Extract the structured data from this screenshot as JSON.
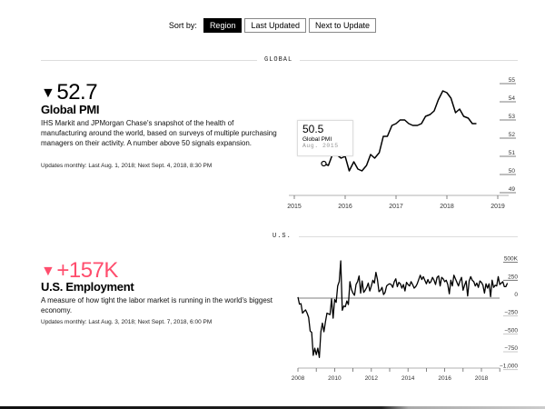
{
  "sort": {
    "label": "Sort by:",
    "options": [
      {
        "label": "Region",
        "active": true
      },
      {
        "label": "Last Updated",
        "active": false
      },
      {
        "label": "Next to Update",
        "active": false
      }
    ]
  },
  "sections": [
    {
      "label": "GLOBAL",
      "indicator": {
        "direction": "▼",
        "value": "52.7",
        "value_color": "#000000",
        "title": "Global PMI",
        "description": "IHS Markit and JPMorgan Chase's snapshot of the health of manufacturing around the world, based on surveys of multiple purchasing managers on their activity. A number above 50 signals expansion.",
        "updates": "Updates monthly: Last Aug. 1, 2018; Next Sept. 4, 2018, 8:30 PM",
        "tooltip": {
          "value": "50.5",
          "name": "Global PMI",
          "date": "Aug. 2015"
        }
      }
    },
    {
      "label": "U.S.",
      "indicator": {
        "direction": "▼",
        "value": "+157K",
        "value_color": "#ff4d6d",
        "title": "U.S. Employment",
        "description": "A measure of how tight the labor market is running in the world's biggest economy.",
        "updates": "Updates monthly: Last Aug. 3, 2018; Next Sept. 7, 2018, 6:00 PM"
      }
    }
  ],
  "chart_data": [
    {
      "type": "line",
      "title": "Global PMI",
      "xlabel": "",
      "ylabel": "",
      "x_ticks": [
        "2015",
        "2016",
        "2017",
        "2018",
        "2019"
      ],
      "y_ticks": [
        "55",
        "54",
        "53",
        "52",
        "51",
        "50",
        "49"
      ],
      "ylim": [
        49,
        55
      ],
      "xlim": [
        2015,
        2019
      ],
      "grid": false,
      "highlight": {
        "x": "Aug. 2015",
        "y": 50.5
      },
      "x": [
        2015.58,
        2015.67,
        2015.75,
        2015.83,
        2015.92,
        2016.0,
        2016.08,
        2016.17,
        2016.25,
        2016.33,
        2016.42,
        2016.5,
        2016.58,
        2016.67,
        2016.75,
        2016.83,
        2016.92,
        2017.0,
        2017.08,
        2017.17,
        2017.25,
        2017.33,
        2017.42,
        2017.5,
        2017.58,
        2017.67,
        2017.75,
        2017.83,
        2017.92,
        2018.0,
        2018.08,
        2018.17,
        2018.25,
        2018.33,
        2018.42,
        2018.5,
        2018.58
      ],
      "values": [
        50.5,
        50.4,
        51.0,
        51.0,
        50.8,
        50.9,
        50.1,
        50.6,
        50.2,
        50.1,
        50.4,
        51.0,
        50.8,
        51.1,
        52.0,
        52.0,
        52.6,
        52.7,
        52.9,
        52.9,
        52.7,
        52.6,
        52.6,
        52.7,
        53.1,
        53.2,
        53.4,
        54.0,
        54.5,
        54.4,
        54.1,
        53.3,
        53.5,
        53.1,
        53.0,
        52.7,
        52.7
      ]
    },
    {
      "type": "line",
      "title": "U.S. Employment (monthly change, thousands)",
      "xlabel": "",
      "ylabel": "",
      "x_ticks": [
        "2008",
        "2010",
        "2012",
        "2014",
        "2016",
        "2018"
      ],
      "y_ticks": [
        "500K",
        "250",
        "0",
        "−250",
        "−500",
        "−750",
        "−1,000"
      ],
      "ylim": [
        -1000,
        500
      ],
      "xlim": [
        2008,
        2019
      ],
      "grid": false,
      "x_start": 2008.0,
      "x_step_months": 1,
      "values": [
        14,
        -85,
        -78,
        -210,
        -185,
        -165,
        -210,
        -270,
        -460,
        -480,
        -800,
        -700,
        -790,
        -700,
        -830,
        -470,
        -350,
        -470,
        -330,
        -210,
        -220,
        -230,
        -10,
        -280,
        -20,
        -60,
        170,
        230,
        520,
        -170,
        -110,
        -120,
        -40,
        -90,
        230,
        120,
        70,
        40,
        190,
        230,
        310,
        70,
        240,
        80,
        110,
        150,
        210,
        100,
        170,
        250,
        210,
        360,
        260,
        90,
        110,
        150,
        50,
        80,
        170,
        190,
        200,
        190,
        150,
        230,
        270,
        160,
        220,
        200,
        140,
        190,
        100,
        220,
        190,
        170,
        230,
        190,
        140,
        160,
        200,
        260,
        320,
        260,
        300,
        250,
        200,
        260,
        210,
        230,
        290,
        250,
        190,
        290,
        310,
        170,
        290,
        270,
        230,
        250,
        190,
        60,
        250,
        170,
        320,
        270,
        220,
        170,
        240,
        290,
        110,
        180,
        240,
        30,
        240,
        300,
        250,
        230,
        170,
        210,
        150,
        240,
        220,
        180,
        70,
        200,
        140,
        200,
        20,
        250,
        150,
        180,
        170,
        300,
        190,
        210,
        230,
        160,
        160,
        210
      ]
    }
  ]
}
